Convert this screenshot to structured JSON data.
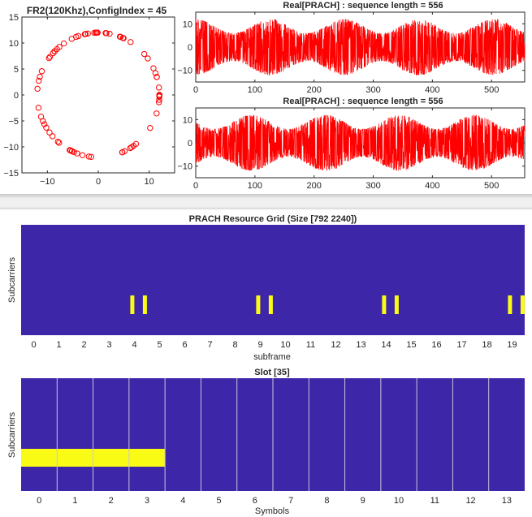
{
  "chart_data": [
    {
      "id": "constellation",
      "type": "scatter",
      "title": "FR2(120Khz),ConfigIndex = 45",
      "marker": "open-circle",
      "color": "#ff0000",
      "xlim": [
        -15,
        15
      ],
      "ylim": [
        -15,
        15
      ],
      "xticks": [
        -10,
        0,
        10
      ],
      "yticks": [
        15,
        10,
        5,
        0,
        -5,
        -10,
        -15
      ],
      "radius": 12,
      "point_count": 72
    },
    {
      "id": "real-prach-1",
      "type": "line",
      "title": "Real[PRACH] : sequence length = 556",
      "color": "#ff0000",
      "xlim": [
        0,
        556
      ],
      "ylim": [
        -15,
        15
      ],
      "xticks": [
        0,
        100,
        200,
        300,
        400,
        500
      ],
      "yticks": [
        10,
        0,
        -10
      ],
      "amplitude": 12
    },
    {
      "id": "real-prach-2",
      "type": "line",
      "title": "Real[PRACH] : sequence length = 556",
      "color": "#ff0000",
      "xlim": [
        0,
        556
      ],
      "ylim": [
        -15,
        15
      ],
      "xticks": [
        0,
        100,
        200,
        300,
        400,
        500
      ],
      "yticks": [
        10,
        0,
        -10
      ],
      "amplitude": 12
    },
    {
      "id": "resource-grid",
      "type": "heatmap",
      "title": "PRACH Resource Grid (Size [792 2240])",
      "xlabel": "subframe",
      "ylabel": "Subcarriers",
      "xticks": [
        "0",
        "1",
        "2",
        "3",
        "4",
        "5",
        "6",
        "7",
        "8",
        "9",
        "10",
        "11",
        "12",
        "13",
        "14",
        "15",
        "16",
        "17",
        "18",
        "19"
      ],
      "xlim": [
        -0.5,
        19.5
      ],
      "background": "#3d26a8",
      "highlight": "#f9fb15",
      "occupied_subframes": [
        3.9,
        4.4,
        8.9,
        9.4,
        13.9,
        14.4,
        18.9,
        19.4
      ]
    },
    {
      "id": "slot-grid",
      "type": "heatmap",
      "title": "Slot [35]",
      "xlabel": "Symbols",
      "ylabel": "Subcarriers",
      "xticks": [
        "0",
        "1",
        "2",
        "3",
        "4",
        "5",
        "6",
        "7",
        "8",
        "9",
        "10",
        "11",
        "12",
        "13"
      ],
      "xlim": [
        -0.5,
        13.5
      ],
      "background": "#3d26a8",
      "highlight": "#f9fb15",
      "grid_line_color": "#c8c8d8",
      "occupied_symbols": [
        0,
        1,
        2,
        3
      ]
    }
  ]
}
